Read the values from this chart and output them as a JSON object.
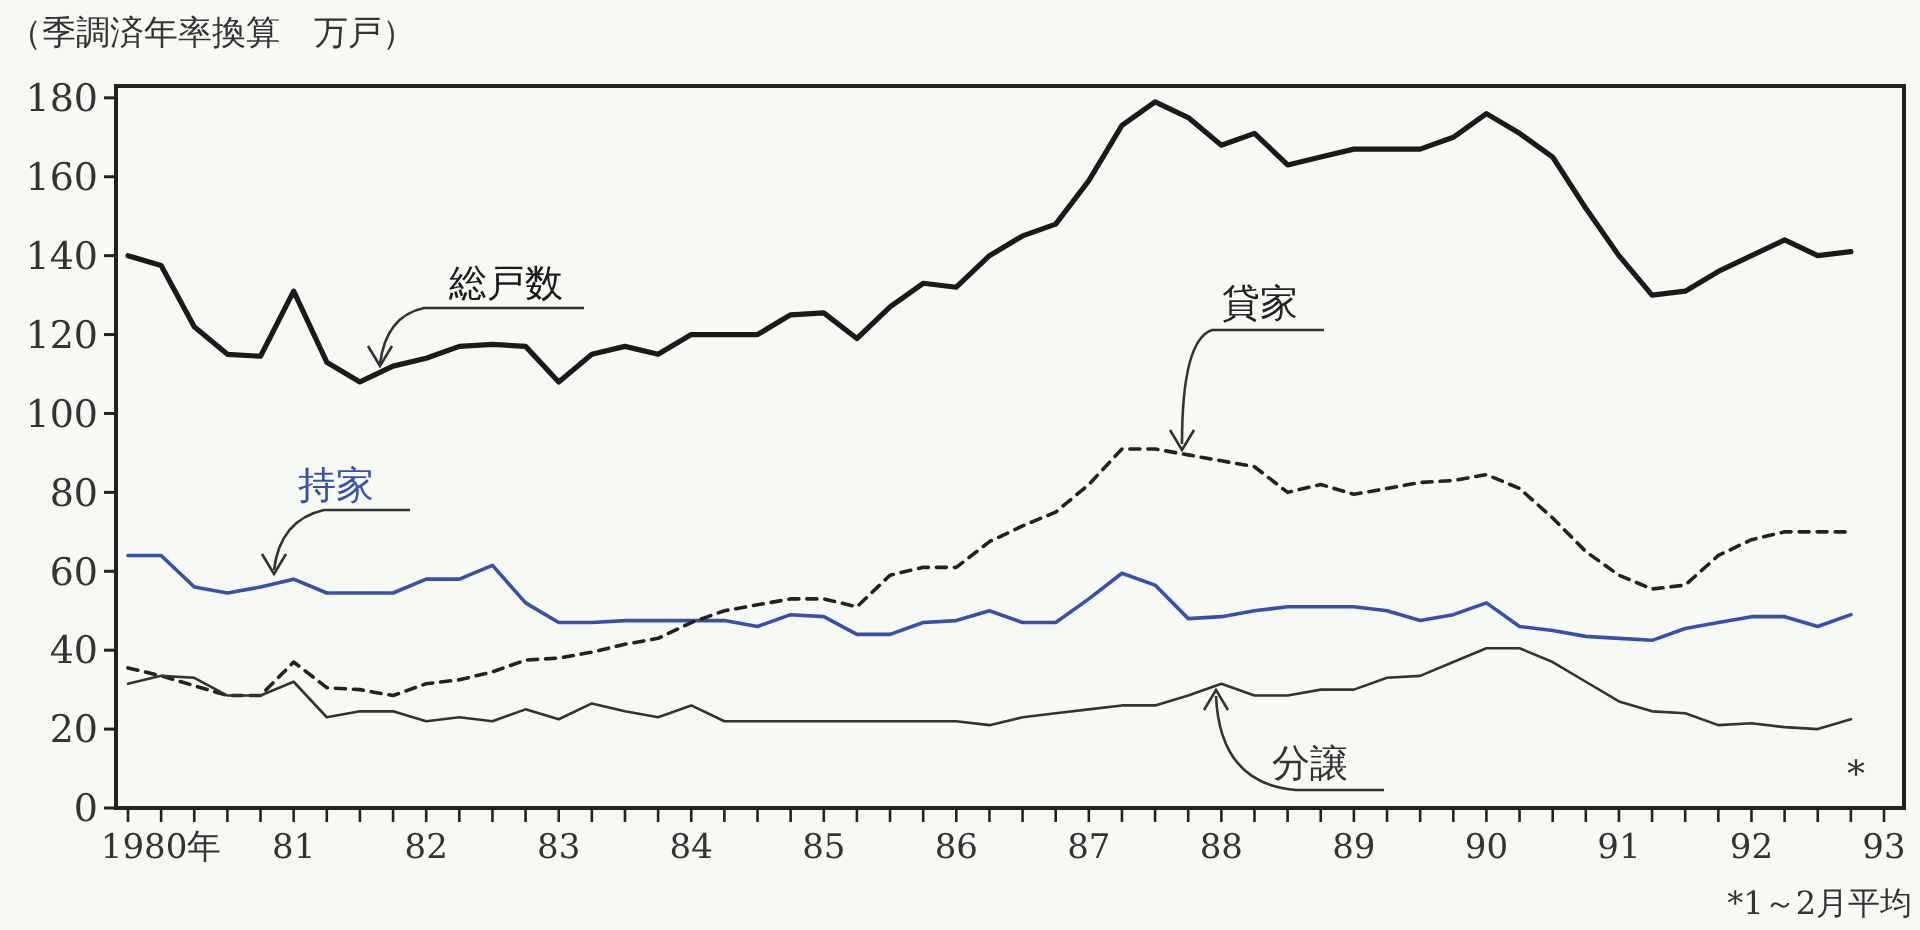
{
  "chart_data": {
    "type": "line",
    "ylabel": "（季調済年率換算　万戸）",
    "categories": [
      null,
      "1980年",
      null,
      null,
      null,
      "81",
      null,
      null,
      null,
      "82",
      null,
      null,
      null,
      "83",
      null,
      null,
      null,
      "84",
      null,
      null,
      null,
      "85",
      null,
      null,
      null,
      "86",
      null,
      null,
      null,
      "87",
      null,
      null,
      null,
      "88",
      null,
      null,
      null,
      "89",
      null,
      null,
      null,
      "90",
      null,
      null,
      null,
      "91",
      null,
      null,
      null,
      "92",
      null,
      null,
      null,
      "93"
    ],
    "ylim": [
      0,
      183
    ],
    "yticks": [
      0,
      20,
      40,
      60,
      80,
      100,
      120,
      140,
      160,
      180
    ],
    "series": [
      {
        "name": "総戸数",
        "color": "#1a1a1a",
        "line_style": "solid",
        "values": [
          140,
          137.5,
          122,
          115,
          114.5,
          131,
          113,
          108,
          112,
          114,
          117,
          117.5,
          117,
          108,
          115,
          117,
          115,
          120,
          120,
          120,
          125,
          125.5,
          119,
          127,
          133,
          132,
          140,
          145,
          148,
          159,
          173,
          179,
          175,
          168,
          171,
          163,
          165,
          167,
          167,
          167,
          170,
          176,
          171,
          165,
          152,
          140,
          130,
          131,
          136,
          140,
          144,
          140,
          141,
          null
        ]
      },
      {
        "name": "持家",
        "color": "#3a4fa8",
        "line_style": "solid",
        "values": [
          64,
          64,
          56,
          54.5,
          56,
          58,
          54.5,
          54.5,
          54.5,
          58,
          58,
          61.5,
          52,
          47,
          47,
          47.5,
          47.5,
          47.5,
          47.5,
          46,
          49,
          48.5,
          44,
          44,
          47,
          47.5,
          50,
          47,
          47,
          53,
          59.5,
          56.5,
          48,
          48.5,
          50,
          51,
          51,
          51,
          50,
          47.5,
          49,
          52,
          46,
          45,
          43.5,
          43,
          42.5,
          45.5,
          47,
          48.5,
          48.5,
          46,
          49,
          null
        ]
      },
      {
        "name": "貸家",
        "color": "#222222",
        "line_style": "dashed",
        "values": [
          35.5,
          33.5,
          31,
          28.5,
          28.5,
          37,
          30.5,
          30,
          28.5,
          31.5,
          32.5,
          34.5,
          37.5,
          38,
          39.5,
          41.5,
          43,
          47,
          50,
          51.5,
          53,
          53,
          51,
          59,
          61,
          61,
          67.5,
          71.5,
          75,
          82,
          91,
          91,
          89.5,
          88,
          86.5,
          80,
          82,
          79.5,
          81,
          82.5,
          83,
          84.5,
          81,
          73.5,
          65,
          59,
          55.5,
          56.5,
          64,
          68,
          70,
          70,
          70,
          null
        ]
      },
      {
        "name": "分譲",
        "color": "#333333",
        "line_style": "solid",
        "values": [
          31.5,
          33.5,
          33,
          28.5,
          28.5,
          32,
          23,
          24.5,
          24.5,
          22,
          23,
          22,
          25,
          22.5,
          26.5,
          24.5,
          23,
          26,
          22,
          22,
          22,
          22,
          22,
          22,
          22,
          22,
          21,
          23,
          24,
          25,
          26,
          26,
          28.5,
          31.5,
          28.5,
          28.5,
          30,
          30,
          33,
          33.5,
          37,
          40.5,
          40.5,
          37,
          32,
          27,
          24.5,
          24,
          21,
          21.5,
          20.5,
          20,
          22.5,
          null
        ]
      }
    ],
    "annotations": [
      "*",
      "*1～2月平均"
    ]
  }
}
